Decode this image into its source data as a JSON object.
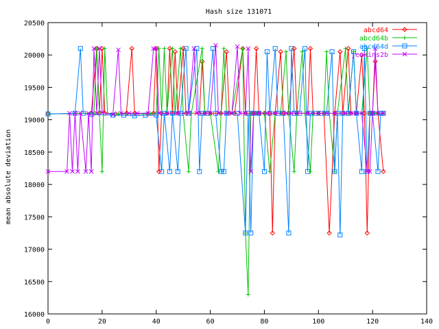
{
  "chart_data": {
    "type": "line",
    "title": "Hash size 131071",
    "xlabel": "",
    "ylabel": "mean absolute deviation",
    "xlim": [
      0,
      140
    ],
    "ylim": [
      16000,
      20500
    ],
    "x_ticks": [
      0,
      20,
      40,
      60,
      80,
      100,
      120,
      140
    ],
    "y_ticks": [
      16000,
      16500,
      17000,
      17500,
      18000,
      18500,
      19000,
      19500,
      20000,
      20500
    ],
    "grid": false,
    "legend_position": "top-right",
    "x_range_of_series": [
      0,
      124
    ],
    "series": [
      {
        "name": "abcd64",
        "color": "#ff0000",
        "marker": "diamond",
        "points": [
          [
            0,
            19090
          ],
          [
            16,
            19100
          ],
          [
            18,
            20100
          ],
          [
            19,
            19100
          ],
          [
            20,
            20100
          ],
          [
            21,
            19100
          ],
          [
            25,
            19090
          ],
          [
            29,
            19100
          ],
          [
            31,
            20100
          ],
          [
            32,
            19100
          ],
          [
            37,
            19090
          ],
          [
            39,
            19100
          ],
          [
            40,
            20100
          ],
          [
            41,
            18200
          ],
          [
            42,
            19100
          ],
          [
            44,
            19100
          ],
          [
            45,
            20100
          ],
          [
            46,
            19100
          ],
          [
            47,
            20050
          ],
          [
            48,
            19100
          ],
          [
            50,
            20100
          ],
          [
            51,
            19100
          ],
          [
            56,
            19100
          ],
          [
            57,
            19900
          ],
          [
            58,
            19100
          ],
          [
            60,
            19100
          ],
          [
            64,
            19100
          ],
          [
            66,
            20050
          ],
          [
            67,
            19100
          ],
          [
            69,
            19100
          ],
          [
            72,
            20100
          ],
          [
            73,
            19100
          ],
          [
            76,
            19100
          ],
          [
            77,
            20100
          ],
          [
            78,
            19100
          ],
          [
            80,
            19100
          ],
          [
            82,
            19100
          ],
          [
            83,
            17250
          ],
          [
            84,
            19100
          ],
          [
            86,
            20050
          ],
          [
            87,
            19100
          ],
          [
            89,
            19100
          ],
          [
            91,
            20100
          ],
          [
            92,
            19100
          ],
          [
            96,
            19100
          ],
          [
            97,
            20100
          ],
          [
            98,
            19100
          ],
          [
            100,
            19100
          ],
          [
            102,
            19100
          ],
          [
            104,
            17250
          ],
          [
            106,
            19100
          ],
          [
            108,
            20050
          ],
          [
            109,
            19100
          ],
          [
            111,
            20100
          ],
          [
            112,
            19100
          ],
          [
            114,
            19100
          ],
          [
            116,
            20000
          ],
          [
            117,
            19100
          ],
          [
            118,
            17250
          ],
          [
            119,
            19100
          ],
          [
            120,
            19100
          ],
          [
            121,
            19900
          ],
          [
            122,
            19100
          ],
          [
            124,
            18200
          ]
        ]
      },
      {
        "name": "abcd64b",
        "color": "#00c000",
        "marker": "plus",
        "points": [
          [
            0,
            19090
          ],
          [
            17,
            19100
          ],
          [
            18,
            20100
          ],
          [
            19,
            19100
          ],
          [
            20,
            18200
          ],
          [
            21,
            20100
          ],
          [
            22,
            19100
          ],
          [
            26,
            19090
          ],
          [
            38,
            19090
          ],
          [
            40,
            19100
          ],
          [
            41,
            20100
          ],
          [
            42,
            19100
          ],
          [
            43,
            20100
          ],
          [
            44,
            19100
          ],
          [
            46,
            20100
          ],
          [
            47,
            19100
          ],
          [
            49,
            20100
          ],
          [
            50,
            19100
          ],
          [
            52,
            18200
          ],
          [
            53,
            19100
          ],
          [
            57,
            20100
          ],
          [
            58,
            19100
          ],
          [
            60,
            19100
          ],
          [
            63,
            18200
          ],
          [
            64,
            19100
          ],
          [
            65,
            20100
          ],
          [
            66,
            19100
          ],
          [
            68,
            19100
          ],
          [
            72,
            20100
          ],
          [
            73,
            17250
          ],
          [
            74,
            16300
          ],
          [
            75,
            19100
          ],
          [
            77,
            19100
          ],
          [
            80,
            19100
          ],
          [
            82,
            18200
          ],
          [
            84,
            19100
          ],
          [
            86,
            19100
          ],
          [
            88,
            20050
          ],
          [
            89,
            19100
          ],
          [
            91,
            18200
          ],
          [
            92,
            19100
          ],
          [
            94,
            20050
          ],
          [
            95,
            19100
          ],
          [
            97,
            18200
          ],
          [
            98,
            19100
          ],
          [
            100,
            19100
          ],
          [
            102,
            19100
          ],
          [
            103,
            20050
          ],
          [
            104,
            19100
          ],
          [
            106,
            18200
          ],
          [
            107,
            19100
          ],
          [
            110,
            20100
          ],
          [
            111,
            19100
          ],
          [
            113,
            20050
          ],
          [
            114,
            19100
          ],
          [
            116,
            19100
          ],
          [
            118,
            20100
          ],
          [
            119,
            19100
          ],
          [
            121,
            19100
          ],
          [
            122,
            19100
          ],
          [
            124,
            19100
          ]
        ]
      },
      {
        "name": "abcd64d",
        "color": "#0080ff",
        "marker": "square",
        "points": [
          [
            0,
            19090
          ],
          [
            10,
            19100
          ],
          [
            12,
            20100
          ],
          [
            13,
            19100
          ],
          [
            16,
            19080
          ],
          [
            24,
            19070
          ],
          [
            28,
            19070
          ],
          [
            32,
            19060
          ],
          [
            36,
            19070
          ],
          [
            40,
            19070
          ],
          [
            42,
            18200
          ],
          [
            43,
            19100
          ],
          [
            45,
            18200
          ],
          [
            46,
            19100
          ],
          [
            48,
            18200
          ],
          [
            49,
            19100
          ],
          [
            51,
            20100
          ],
          [
            52,
            19100
          ],
          [
            55,
            20100
          ],
          [
            56,
            18200
          ],
          [
            57,
            19100
          ],
          [
            59,
            19100
          ],
          [
            61,
            20100
          ],
          [
            62,
            19100
          ],
          [
            64,
            18200
          ],
          [
            65,
            18200
          ],
          [
            66,
            19100
          ],
          [
            70,
            19100
          ],
          [
            73,
            17250
          ],
          [
            74,
            19100
          ],
          [
            75,
            17250
          ],
          [
            76,
            19100
          ],
          [
            78,
            19100
          ],
          [
            80,
            18200
          ],
          [
            81,
            20050
          ],
          [
            82,
            19100
          ],
          [
            84,
            20100
          ],
          [
            85,
            19100
          ],
          [
            87,
            19100
          ],
          [
            89,
            17250
          ],
          [
            90,
            20100
          ],
          [
            91,
            19100
          ],
          [
            93,
            19100
          ],
          [
            95,
            20100
          ],
          [
            96,
            18200
          ],
          [
            97,
            19100
          ],
          [
            99,
            19100
          ],
          [
            101,
            19100
          ],
          [
            103,
            19100
          ],
          [
            105,
            20050
          ],
          [
            106,
            18200
          ],
          [
            107,
            19100
          ],
          [
            108,
            17220
          ],
          [
            109,
            19100
          ],
          [
            111,
            19100
          ],
          [
            113,
            20050
          ],
          [
            114,
            19100
          ],
          [
            116,
            18200
          ],
          [
            117,
            20100
          ],
          [
            118,
            18200
          ],
          [
            119,
            19100
          ],
          [
            120,
            19100
          ],
          [
            122,
            18200
          ],
          [
            123,
            19100
          ],
          [
            124,
            19100
          ]
        ]
      },
      {
        "name": "jenkins2b",
        "color": "#c000ff",
        "marker": "cross",
        "points": [
          [
            0,
            18200
          ],
          [
            7,
            18200
          ],
          [
            8,
            19100
          ],
          [
            9,
            18200
          ],
          [
            10,
            19100
          ],
          [
            11,
            18200
          ],
          [
            12,
            19100
          ],
          [
            14,
            18200
          ],
          [
            15,
            19100
          ],
          [
            16,
            18200
          ],
          [
            17,
            20100
          ],
          [
            18,
            19100
          ],
          [
            19,
            20100
          ],
          [
            20,
            19110
          ],
          [
            24,
            19080
          ],
          [
            26,
            20080
          ],
          [
            27,
            19100
          ],
          [
            30,
            19100
          ],
          [
            33,
            19100
          ],
          [
            37,
            19100
          ],
          [
            39,
            20100
          ],
          [
            40,
            20100
          ],
          [
            41,
            19100
          ],
          [
            44,
            19100
          ],
          [
            48,
            19100
          ],
          [
            52,
            19100
          ],
          [
            54,
            20100
          ],
          [
            55,
            19100
          ],
          [
            58,
            19100
          ],
          [
            60,
            19100
          ],
          [
            62,
            20150
          ],
          [
            63,
            19100
          ],
          [
            66,
            19100
          ],
          [
            68,
            19100
          ],
          [
            70,
            20130
          ],
          [
            71,
            19100
          ],
          [
            73,
            19100
          ],
          [
            74,
            20100
          ],
          [
            75,
            18200
          ],
          [
            76,
            19100
          ],
          [
            78,
            19100
          ],
          [
            81,
            19100
          ],
          [
            84,
            19100
          ],
          [
            88,
            19100
          ],
          [
            90,
            19100
          ],
          [
            92,
            19100
          ],
          [
            96,
            19100
          ],
          [
            100,
            19100
          ],
          [
            103,
            19100
          ],
          [
            106,
            19100
          ],
          [
            110,
            19100
          ],
          [
            112,
            19100
          ],
          [
            114,
            19100
          ],
          [
            116,
            19100
          ],
          [
            118,
            18200
          ],
          [
            119,
            18200
          ],
          [
            120,
            19100
          ],
          [
            121,
            20100
          ],
          [
            122,
            19100
          ],
          [
            124,
            19100
          ]
        ]
      }
    ]
  }
}
